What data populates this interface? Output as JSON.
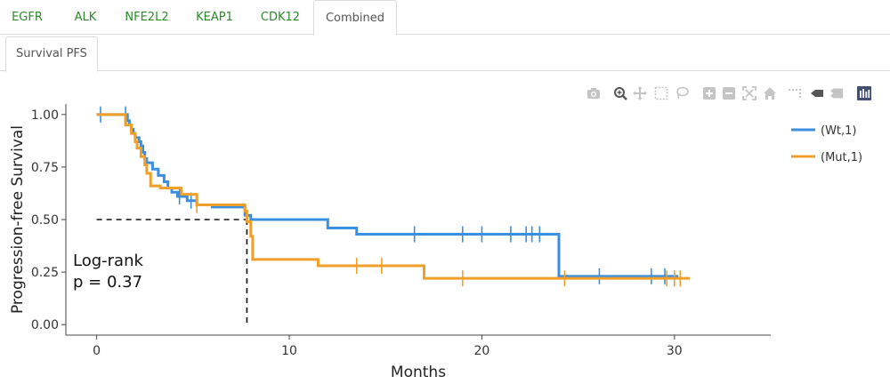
{
  "tabs": [
    {
      "label": "EGFR",
      "active": false
    },
    {
      "label": "ALK",
      "active": false
    },
    {
      "label": "NFE2L2",
      "active": false
    },
    {
      "label": "KEAP1",
      "active": false
    },
    {
      "label": "CDK12",
      "active": false
    },
    {
      "label": "Combined",
      "active": true
    }
  ],
  "subtabs": [
    {
      "label": "Survival PFS",
      "active": true
    }
  ],
  "modebar": {
    "icons": [
      "camera-icon",
      "zoom-icon",
      "pan-icon",
      "box-select-icon",
      "lasso-select-icon",
      "zoom-in-icon",
      "zoom-out-icon",
      "autoscale-icon",
      "reset-axes-icon",
      "spike-lines-icon",
      "hover-closest-icon",
      "hover-compare-icon",
      "plotly-logo-icon"
    ]
  },
  "chart_data": {
    "type": "line",
    "step": true,
    "xlabel": "Months",
    "ylabel": "Progression-free Survival",
    "xlim": [
      -1.6,
      35.0
    ],
    "ylim": [
      -0.05,
      1.05
    ],
    "xticks": [
      "0",
      "10",
      "20",
      "30"
    ],
    "yticks": [
      "0.00",
      "0.25",
      "0.50",
      "0.75",
      "1.00"
    ],
    "grid": false,
    "legend_position": "top-right",
    "annotation": {
      "line1": "Log-rank",
      "line2": "p = 0.37"
    },
    "median_line": {
      "x": 7.8,
      "y": 0.5
    },
    "series": [
      {
        "name": "(Wt,1)",
        "color": "#3b8fe0",
        "x": [
          0,
          1.5,
          1.6,
          1.7,
          1.8,
          1.9,
          2.0,
          2.2,
          2.3,
          2.4,
          2.5,
          2.6,
          2.9,
          3.2,
          3.5,
          3.7,
          3.9,
          4.2,
          4.7,
          5.2,
          6.0,
          7.7,
          8.0,
          12.0,
          13.5,
          24.0,
          30.2
        ],
        "y": [
          1.0,
          1.0,
          0.97,
          0.95,
          0.93,
          0.91,
          0.89,
          0.87,
          0.85,
          0.82,
          0.79,
          0.77,
          0.74,
          0.71,
          0.68,
          0.65,
          0.63,
          0.61,
          0.59,
          0.57,
          0.56,
          0.52,
          0.5,
          0.46,
          0.43,
          0.23,
          0.23
        ],
        "censors": [
          0.2,
          1.5,
          4.3,
          4.9,
          16.5,
          19.0,
          20.0,
          21.5,
          22.3,
          22.6,
          23.0,
          26.1,
          28.8,
          29.5
        ]
      },
      {
        "name": "(Mut,1)",
        "color": "#f0a02a",
        "x": [
          0,
          1.3,
          1.5,
          1.8,
          2.0,
          2.1,
          2.3,
          2.5,
          2.6,
          2.8,
          3.3,
          4.4,
          5.2,
          7.7,
          7.8,
          8.0,
          8.1,
          11.5,
          13.0,
          17.0,
          30.8
        ],
        "y": [
          1.0,
          1.0,
          0.95,
          0.91,
          0.87,
          0.84,
          0.8,
          0.76,
          0.72,
          0.66,
          0.65,
          0.62,
          0.57,
          0.54,
          0.49,
          0.42,
          0.31,
          0.28,
          0.28,
          0.22,
          0.22
        ],
        "censors": [
          5.2,
          13.5,
          14.8,
          19.0,
          24.3,
          29.6,
          30.0,
          30.3
        ]
      }
    ]
  }
}
